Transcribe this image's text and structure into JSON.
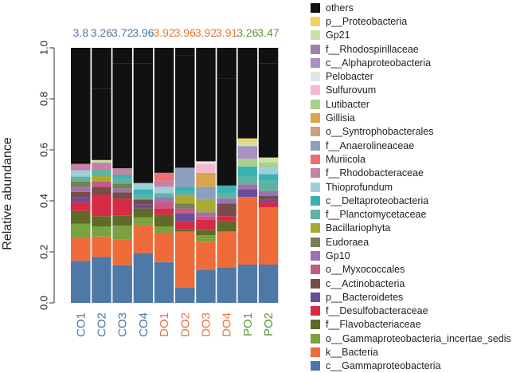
{
  "chart_data": {
    "type": "stacked-bar",
    "ylabel": "Relative abundance",
    "ylim": [
      0,
      1
    ],
    "yticks": [
      "0.0",
      "0.2",
      "0.4",
      "0.6",
      "0.8",
      "1.0"
    ],
    "categories": [
      "CO1",
      "CO2",
      "CO3",
      "CO4",
      "DO1",
      "DO2",
      "DO3",
      "DO4",
      "PO1",
      "PO2"
    ],
    "category_colors": [
      "#4e79a7",
      "#4e79a7",
      "#4e79a7",
      "#4e79a7",
      "#e8763a",
      "#e8763a",
      "#e8763a",
      "#e8763a",
      "#5a9a3c",
      "#5a9a3c"
    ],
    "top_labels": [
      "3.8",
      "3.26",
      "3.72",
      "3.96",
      "3.92",
      "3.96",
      "3.92",
      "3.91",
      "3.26",
      "3.47"
    ],
    "series": [
      {
        "name": "c__Gammaproteobacteria",
        "color": "#4e79a7",
        "values": [
          0.165,
          0.18,
          0.148,
          0.195,
          0.16,
          0.06,
          0.13,
          0.14,
          0.15,
          0.15
        ]
      },
      {
        "name": "k__Bacteria",
        "color": "#ef6c3a",
        "values": [
          0.09,
          0.08,
          0.1,
          0.11,
          0.115,
          0.22,
          0.11,
          0.14,
          0.265,
          0.225
        ]
      },
      {
        "name": "o__Gammaproteobacteria_incertae_sedis",
        "color": "#7aa23e",
        "values": [
          0.055,
          0.04,
          0.055,
          0.03,
          0.025,
          0.0,
          0.025,
          0.0,
          0.0,
          0.0
        ]
      },
      {
        "name": "f__Flavobacteriaceae",
        "color": "#5f6b28",
        "values": [
          0.05,
          0.04,
          0.04,
          0.035,
          0.045,
          0.01,
          0.02,
          0.04,
          0.0,
          0.0
        ]
      },
      {
        "name": "f__Desulfobacteraceae",
        "color": "#d62a45",
        "values": [
          0.035,
          0.085,
          0.065,
          0.0,
          0.025,
          0.03,
          0.04,
          0.02,
          0.0,
          0.02
        ]
      },
      {
        "name": "p__Bacteroidetes",
        "color": "#6b4c9a",
        "values": [
          0.02,
          0.0,
          0.0,
          0.015,
          0.0,
          0.03,
          0.0,
          0.0,
          0.03,
          0.01
        ]
      },
      {
        "name": "c__Actinobacteria",
        "color": "#7a4b4b",
        "values": [
          0.02,
          0.03,
          0.025,
          0.02,
          0.0,
          0.0,
          0.0,
          0.05,
          0.0,
          0.015
        ]
      },
      {
        "name": "o__Myxococcales",
        "color": "#c55a82",
        "values": [
          0.0,
          0.02,
          0.0,
          0.0,
          0.025,
          0.02,
          0.015,
          0.0,
          0.0,
          0.0
        ]
      },
      {
        "name": "Gp10",
        "color": "#9b73b0",
        "values": [
          0.02,
          0.0,
          0.015,
          0.0,
          0.02,
          0.0,
          0.015,
          0.02,
          0.02,
          0.02
        ]
      },
      {
        "name": "Eudoraea",
        "color": "#7b7d55",
        "values": [
          0.02,
          0.0,
          0.02,
          0.0,
          0.0,
          0.02,
          0.0,
          0.0,
          0.0,
          0.0
        ]
      },
      {
        "name": "Bacillariophyta",
        "color": "#a7ab34",
        "values": [
          0.0,
          0.025,
          0.0,
          0.0,
          0.0,
          0.03,
          0.05,
          0.0,
          0.0,
          0.0
        ]
      },
      {
        "name": "f__Planctomycetaceae",
        "color": "#5fb3a1",
        "values": [
          0.02,
          0.025,
          0.02,
          0.02,
          0.015,
          0.015,
          0.0,
          0.02,
          0.03,
          0.04
        ]
      },
      {
        "name": "c__Deltaproteobacteria",
        "color": "#38b2b5",
        "values": [
          0.0,
          0.0,
          0.015,
          0.02,
          0.0,
          0.02,
          0.0,
          0.03,
          0.04,
          0.025
        ]
      },
      {
        "name": "Thioprofundum",
        "color": "#9dd0d4",
        "values": [
          0.025,
          0.0,
          0.0,
          0.025,
          0.025,
          0.0,
          0.0,
          0.0,
          0.0,
          0.025
        ]
      },
      {
        "name": "f__Rhodobacteraceae",
        "color": "#c682a6",
        "values": [
          0.025,
          0.025,
          0.025,
          0.0,
          0.025,
          0.0,
          0.0,
          0.0,
          0.0,
          0.0
        ]
      },
      {
        "name": "Muriicola",
        "color": "#f26d6d",
        "values": [
          0.0,
          0.0,
          0.0,
          0.0,
          0.03,
          0.0,
          0.0,
          0.0,
          0.0,
          0.0
        ]
      },
      {
        "name": "f__Anaerolineaceae",
        "color": "#8d9fbf",
        "values": [
          0.0,
          0.0,
          0.0,
          0.0,
          0.0,
          0.075,
          0.05,
          0.0,
          0.0,
          0.0
        ]
      },
      {
        "name": "o__Syntrophobacterales",
        "color": "#c8a27c",
        "values": [
          0.0,
          0.0,
          0.0,
          0.0,
          0.0,
          0.0,
          0.0,
          0.0,
          0.0,
          0.0
        ]
      },
      {
        "name": "Gillisia",
        "color": "#dba54a",
        "values": [
          0.0,
          0.0,
          0.0,
          0.0,
          0.0,
          0.0,
          0.055,
          0.0,
          0.0,
          0.0
        ]
      },
      {
        "name": "Lutibacter",
        "color": "#a9d08c",
        "values": [
          0.0,
          0.0,
          0.0,
          0.0,
          0.0,
          0.0,
          0.0,
          0.0,
          0.03,
          0.02
        ]
      },
      {
        "name": "Sulfurovum",
        "color": "#f3b8d4",
        "values": [
          0.0,
          0.0,
          0.0,
          0.0,
          0.0,
          0.0,
          0.035,
          0.0,
          0.0,
          0.0
        ]
      },
      {
        "name": "Pelobacter",
        "color": "#e5e5e5",
        "values": [
          0.0,
          0.0,
          0.0,
          0.0,
          0.0,
          0.0,
          0.01,
          0.0,
          0.0,
          0.0
        ]
      },
      {
        "name": "c__Alphaproteobacteria",
        "color": "#a98fc4",
        "values": [
          0.0,
          0.0,
          0.0,
          0.0,
          0.0,
          0.0,
          0.0,
          0.0,
          0.05,
          0.0
        ]
      },
      {
        "name": "f__Rhodospirillaceae",
        "color": "#a082a9",
        "values": [
          0.0,
          0.0,
          0.0,
          0.0,
          0.0,
          0.0,
          0.0,
          0.0,
          0.0,
          0.0
        ]
      },
      {
        "name": "Gp21",
        "color": "#c9e3a4",
        "values": [
          0.0,
          0.01,
          0.0,
          0.0,
          0.0,
          0.0,
          0.0,
          0.0,
          0.015,
          0.02
        ]
      },
      {
        "name": "p__Proteobacteria",
        "color": "#f5d060",
        "values": [
          0.0,
          0.0,
          0.0,
          0.0,
          0.0,
          0.0,
          0.0,
          0.0,
          0.015,
          0.0
        ]
      },
      {
        "name": "others",
        "color": "#111111",
        "values": [
          0.43,
          0.28,
          0.41,
          0.47,
          0.44,
          0.44,
          0.45,
          0.42,
          0.33,
          0.37
        ]
      }
    ]
  }
}
